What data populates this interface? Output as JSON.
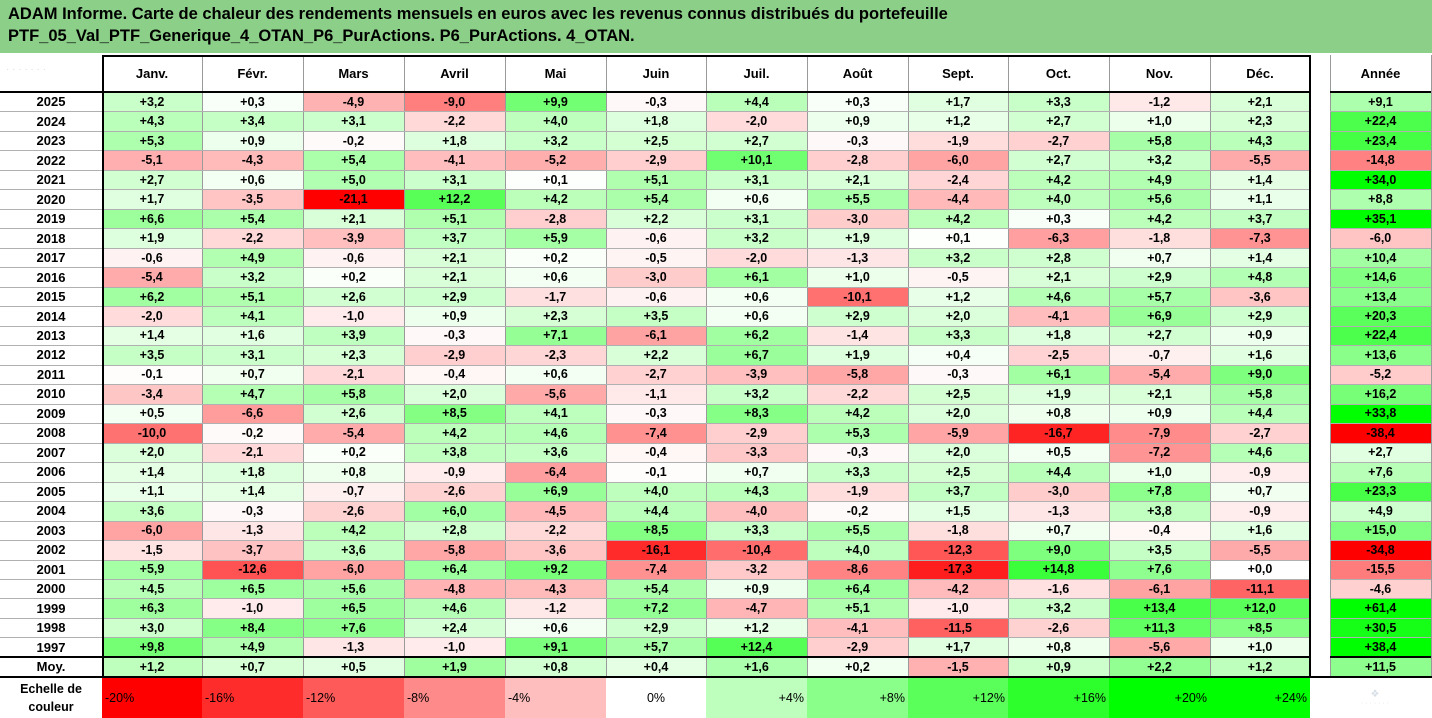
{
  "title": {
    "line1": "ADAM Informe. Carte de chaleur des rendements mensuels en euros avec les revenus connus distribués du portefeuille",
    "line2": "PTF_05_Val_PTF_Generique_4_OTAN_P6_PurActions. P6_PurActions. 4_OTAN."
  },
  "chart_data": {
    "type": "heatmap",
    "columns": [
      "Janv.",
      "Févr.",
      "Mars",
      "Avril",
      "Mai",
      "Juin",
      "Juil.",
      "Août",
      "Sept.",
      "Oct.",
      "Nov.",
      "Déc."
    ],
    "year_column": "Année",
    "rows": [
      {
        "year": "2025",
        "months": [
          "+3,2",
          "+0,3",
          "-4,9",
          "-9,0",
          "+9,9",
          "-0,3",
          "+4,4",
          "+0,3",
          "+1,7",
          "+3,3",
          "-1,2",
          "+2,1"
        ],
        "annual": "+9,1"
      },
      {
        "year": "2024",
        "months": [
          "+4,3",
          "+3,4",
          "+3,1",
          "-2,2",
          "+4,0",
          "+1,8",
          "-2,0",
          "+0,9",
          "+1,2",
          "+2,7",
          "+1,0",
          "+2,3"
        ],
        "annual": "+22,4"
      },
      {
        "year": "2023",
        "months": [
          "+5,3",
          "+0,9",
          "-0,2",
          "+1,8",
          "+3,2",
          "+2,5",
          "+2,7",
          "-0,3",
          "-1,9",
          "-2,7",
          "+5,8",
          "+4,3"
        ],
        "annual": "+23,4"
      },
      {
        "year": "2022",
        "months": [
          "-5,1",
          "-4,3",
          "+5,4",
          "-4,1",
          "-5,2",
          "-2,9",
          "+10,1",
          "-2,8",
          "-6,0",
          "+2,7",
          "+3,2",
          "-5,5"
        ],
        "annual": "-14,8"
      },
      {
        "year": "2021",
        "months": [
          "+2,7",
          "+0,6",
          "+5,0",
          "+3,1",
          "+0,1",
          "+5,1",
          "+3,1",
          "+2,1",
          "-2,4",
          "+4,2",
          "+4,9",
          "+1,4"
        ],
        "annual": "+34,0"
      },
      {
        "year": "2020",
        "months": [
          "+1,7",
          "-3,5",
          "-21,1",
          "+12,2",
          "+4,2",
          "+5,4",
          "+0,6",
          "+5,5",
          "-4,4",
          "+4,0",
          "+5,6",
          "+1,1"
        ],
        "annual": "+8,8"
      },
      {
        "year": "2019",
        "months": [
          "+6,6",
          "+5,4",
          "+2,1",
          "+5,1",
          "-2,8",
          "+2,2",
          "+3,1",
          "-3,0",
          "+4,2",
          "+0,3",
          "+4,2",
          "+3,7"
        ],
        "annual": "+35,1"
      },
      {
        "year": "2018",
        "months": [
          "+1,9",
          "-2,2",
          "-3,9",
          "+3,7",
          "+5,9",
          "-0,6",
          "+3,2",
          "+1,9",
          "+0,1",
          "-6,3",
          "-1,8",
          "-7,3"
        ],
        "annual": "-6,0"
      },
      {
        "year": "2017",
        "months": [
          "-0,6",
          "+4,9",
          "-0,6",
          "+2,1",
          "+0,2",
          "-0,5",
          "-2,0",
          "-1,3",
          "+3,2",
          "+2,8",
          "+0,7",
          "+1,4"
        ],
        "annual": "+10,4"
      },
      {
        "year": "2016",
        "months": [
          "-5,4",
          "+3,2",
          "+0,2",
          "+2,1",
          "+0,6",
          "-3,0",
          "+6,1",
          "+1,0",
          "-0,5",
          "+2,1",
          "+2,9",
          "+4,8"
        ],
        "annual": "+14,6"
      },
      {
        "year": "2015",
        "months": [
          "+6,2",
          "+5,1",
          "+2,6",
          "+2,9",
          "-1,7",
          "-0,6",
          "+0,6",
          "-10,1",
          "+1,2",
          "+4,6",
          "+5,7",
          "-3,6"
        ],
        "annual": "+13,4"
      },
      {
        "year": "2014",
        "months": [
          "-2,0",
          "+4,1",
          "-1,0",
          "+0,9",
          "+2,3",
          "+3,5",
          "+0,6",
          "+2,9",
          "+2,0",
          "-4,1",
          "+6,9",
          "+2,9"
        ],
        "annual": "+20,3"
      },
      {
        "year": "2013",
        "months": [
          "+1,4",
          "+1,6",
          "+3,9",
          "-0,3",
          "+7,1",
          "-6,1",
          "+6,2",
          "-1,4",
          "+3,3",
          "+1,8",
          "+2,7",
          "+0,9"
        ],
        "annual": "+22,4"
      },
      {
        "year": "2012",
        "months": [
          "+3,5",
          "+3,1",
          "+2,3",
          "-2,9",
          "-2,3",
          "+2,2",
          "+6,7",
          "+1,9",
          "+0,4",
          "-2,5",
          "-0,7",
          "+1,6"
        ],
        "annual": "+13,6"
      },
      {
        "year": "2011",
        "months": [
          "-0,1",
          "+0,7",
          "-2,1",
          "-0,4",
          "+0,6",
          "-2,7",
          "-3,9",
          "-5,8",
          "-0,3",
          "+6,1",
          "-5,4",
          "+9,0"
        ],
        "annual": "-5,2"
      },
      {
        "year": "2010",
        "months": [
          "-3,4",
          "+4,7",
          "+5,8",
          "+2,0",
          "-5,6",
          "-1,1",
          "+3,2",
          "-2,2",
          "+2,5",
          "+1,9",
          "+2,1",
          "+5,8"
        ],
        "annual": "+16,2"
      },
      {
        "year": "2009",
        "months": [
          "+0,5",
          "-6,6",
          "+2,6",
          "+8,5",
          "+4,1",
          "-0,3",
          "+8,3",
          "+4,2",
          "+2,0",
          "+0,8",
          "+0,9",
          "+4,4"
        ],
        "annual": "+33,8"
      },
      {
        "year": "2008",
        "months": [
          "-10,0",
          "-0,2",
          "-5,4",
          "+4,2",
          "+4,6",
          "-7,4",
          "-2,9",
          "+5,3",
          "-5,9",
          "-16,7",
          "-7,9",
          "-2,7"
        ],
        "annual": "-38,4"
      },
      {
        "year": "2007",
        "months": [
          "+2,0",
          "-2,1",
          "+0,2",
          "+3,8",
          "+3,6",
          "-0,4",
          "-3,3",
          "-0,3",
          "+2,0",
          "+0,5",
          "-7,2",
          "+4,6"
        ],
        "annual": "+2,7"
      },
      {
        "year": "2006",
        "months": [
          "+1,4",
          "+1,8",
          "+0,8",
          "-0,9",
          "-6,4",
          "-0,1",
          "+0,7",
          "+3,3",
          "+2,5",
          "+4,4",
          "+1,0",
          "-0,9"
        ],
        "annual": "+7,6"
      },
      {
        "year": "2005",
        "months": [
          "+1,1",
          "+1,4",
          "-0,7",
          "-2,6",
          "+6,9",
          "+4,0",
          "+4,3",
          "-1,9",
          "+3,7",
          "-3,0",
          "+7,8",
          "+0,7"
        ],
        "annual": "+23,3"
      },
      {
        "year": "2004",
        "months": [
          "+3,6",
          "-0,3",
          "-2,6",
          "+6,0",
          "-4,5",
          "+4,4",
          "-4,0",
          "-0,2",
          "+1,5",
          "-1,3",
          "+3,8",
          "-0,9"
        ],
        "annual": "+4,9"
      },
      {
        "year": "2003",
        "months": [
          "-6,0",
          "-1,3",
          "+4,2",
          "+2,8",
          "-2,2",
          "+8,5",
          "+3,3",
          "+5,5",
          "-1,8",
          "+0,7",
          "-0,4",
          "+1,6"
        ],
        "annual": "+15,0"
      },
      {
        "year": "2002",
        "months": [
          "-1,5",
          "-3,7",
          "+3,6",
          "-5,8",
          "-3,6",
          "-16,1",
          "-10,4",
          "+4,0",
          "-12,3",
          "+9,0",
          "+3,5",
          "-5,5"
        ],
        "annual": "-34,8"
      },
      {
        "year": "2001",
        "months": [
          "+5,9",
          "-12,6",
          "-6,0",
          "+6,4",
          "+9,2",
          "-7,4",
          "-3,2",
          "-8,6",
          "-17,3",
          "+14,8",
          "+7,6",
          "+0,0"
        ],
        "annual": "-15,5"
      },
      {
        "year": "2000",
        "months": [
          "+4,5",
          "+6,5",
          "+5,6",
          "-4,8",
          "-4,3",
          "+5,4",
          "+0,9",
          "+6,4",
          "-4,2",
          "-1,6",
          "-6,1",
          "-11,1"
        ],
        "annual": "-4,6"
      },
      {
        "year": "1999",
        "months": [
          "+6,3",
          "-1,0",
          "+6,5",
          "+4,6",
          "-1,2",
          "+7,2",
          "-4,7",
          "+5,1",
          "-1,0",
          "+3,2",
          "+13,4",
          "+12,0"
        ],
        "annual": "+61,4"
      },
      {
        "year": "1998",
        "months": [
          "+3,0",
          "+8,4",
          "+7,6",
          "+2,4",
          "+0,6",
          "+2,9",
          "+1,2",
          "-4,1",
          "-11,5",
          "-2,6",
          "+11,3",
          "+8,5"
        ],
        "annual": "+30,5"
      },
      {
        "year": "1997",
        "months": [
          "+9,8",
          "+4,9",
          "-1,3",
          "-1,0",
          "+9,1",
          "+5,7",
          "+12,4",
          "-2,9",
          "+1,7",
          "+0,8",
          "-5,6",
          "+1,0"
        ],
        "annual": "+38,4"
      }
    ],
    "average": {
      "label": "Moy.",
      "months": [
        "+1,2",
        "+0,7",
        "+0,5",
        "+1,9",
        "+0,8",
        "+0,4",
        "+1,6",
        "+0,2",
        "-1,5",
        "+0,9",
        "+2,2",
        "+1,2"
      ],
      "annual": "+11,5"
    },
    "scale": {
      "label_line1": "Echelle de",
      "label_line2": "couleur",
      "stops": [
        "-20%",
        "-16%",
        "-12%",
        "-8%",
        "-4%",
        "0%",
        "+4%",
        "+8%",
        "+12%",
        "+16%",
        "+20%",
        "+24%"
      ]
    },
    "colors": {
      "negative_max": "#ff0000",
      "neutral": "#ffffff",
      "positive_max": "#00ff00",
      "header_band": "#8ccf88"
    }
  }
}
